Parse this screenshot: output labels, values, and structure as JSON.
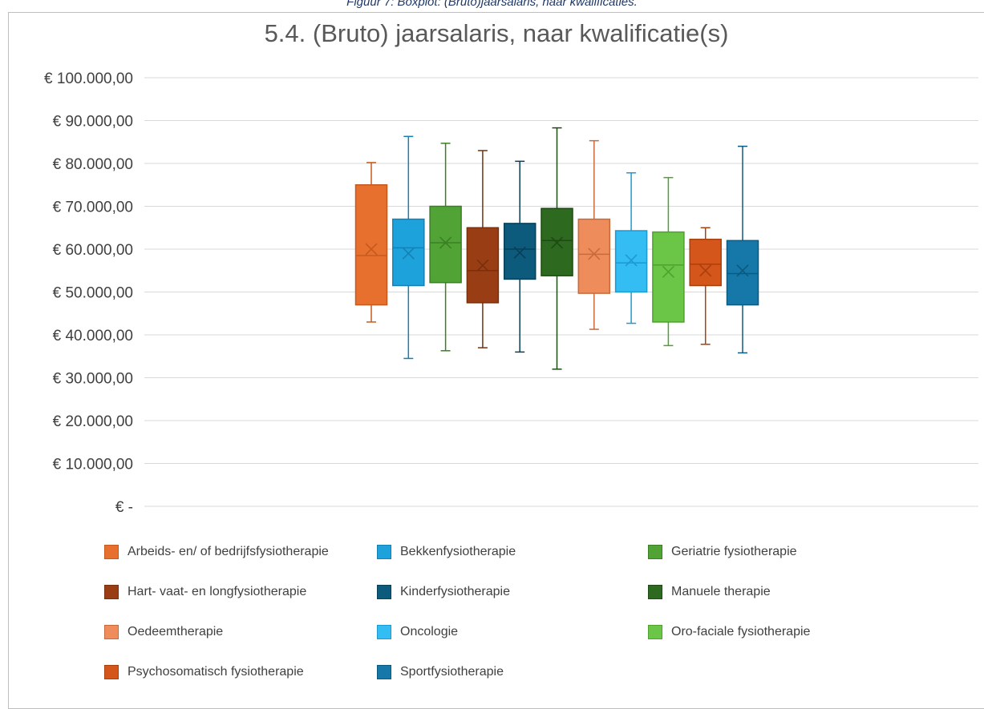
{
  "caption": "Figuur 7: Boxplot: (Bruto)jaarsalaris, naar kwalificaties.",
  "chart_data": {
    "type": "boxplot",
    "title": "5.4. (Bruto) jaarsalaris, naar kwalificatie(s)",
    "ylim": [
      0,
      100000
    ],
    "ytick_values": [
      0,
      10000,
      20000,
      30000,
      40000,
      50000,
      60000,
      70000,
      80000,
      90000,
      100000
    ],
    "ytick_labels": [
      "€ -",
      "€ 10.000,00",
      "€ 20.000,00",
      "€ 30.000,00",
      "€ 40.000,00",
      "€ 50.000,00",
      "€ 60.000,00",
      "€ 70.000,00",
      "€ 80.000,00",
      "€ 90.000,00",
      "€ 100.000,00"
    ],
    "grid": true,
    "legend_position": "bottom",
    "series": [
      {
        "name": "Arbeids- en/ of bedrijfsfysiotherapie",
        "color": "#e8702e",
        "edge": "#c65a1e",
        "min": 43000,
        "q1": 47000,
        "median": 58500,
        "mean": 60000,
        "q3": 75000,
        "max": 80200
      },
      {
        "name": "Bekkenfysiotherapie",
        "color": "#1ea2dc",
        "edge": "#1581b3",
        "min": 34500,
        "q1": 51500,
        "median": 60300,
        "mean": 59000,
        "q3": 67000,
        "max": 86300
      },
      {
        "name": "Geriatrie fysiotherapie",
        "color": "#52a336",
        "edge": "#3b7f25",
        "min": 36300,
        "q1": 52200,
        "median": 61500,
        "mean": 61500,
        "q3": 70000,
        "max": 84700
      },
      {
        "name": "Hart- vaat- en longfysiotherapie",
        "color": "#993e14",
        "edge": "#7a2f0c",
        "min": 37000,
        "q1": 47500,
        "median": 55000,
        "mean": 56200,
        "q3": 65000,
        "max": 83000
      },
      {
        "name": "Kinderfysiotherapie",
        "color": "#0c5a7c",
        "edge": "#083f58",
        "min": 36000,
        "q1": 53000,
        "median": 60000,
        "mean": 59200,
        "q3": 66000,
        "max": 80500
      },
      {
        "name": "Manuele therapie",
        "color": "#2d6a1f",
        "edge": "#1e4a14",
        "min": 32000,
        "q1": 53800,
        "median": 62000,
        "mean": 61500,
        "q3": 69500,
        "max": 88300
      },
      {
        "name": "Oedeemtherapie",
        "color": "#ee8c5c",
        "edge": "#c86a3c",
        "min": 41300,
        "q1": 49700,
        "median": 58800,
        "mean": 58900,
        "q3": 67000,
        "max": 85300
      },
      {
        "name": "Oncologie",
        "color": "#33bdf2",
        "edge": "#1d9ad0",
        "min": 42700,
        "q1": 50000,
        "median": 56800,
        "mean": 57400,
        "q3": 64300,
        "max": 77800
      },
      {
        "name": "Oro-faciale fysiotherapie",
        "color": "#6bc546",
        "edge": "#4da32c",
        "min": 37500,
        "q1": 43000,
        "median": 56300,
        "mean": 54700,
        "q3": 64000,
        "max": 76700
      },
      {
        "name": "Psychosomatisch fysiotherapie",
        "color": "#d4561a",
        "edge": "#a9400f",
        "min": 37800,
        "q1": 51500,
        "median": 56500,
        "mean": 55000,
        "q3": 62300,
        "max": 65000
      },
      {
        "name": "Sportfysiotherapie",
        "color": "#1578a8",
        "edge": "#0d5a80",
        "min": 35800,
        "q1": 47000,
        "median": 54300,
        "mean": 55000,
        "q3": 62000,
        "max": 84000
      }
    ]
  }
}
